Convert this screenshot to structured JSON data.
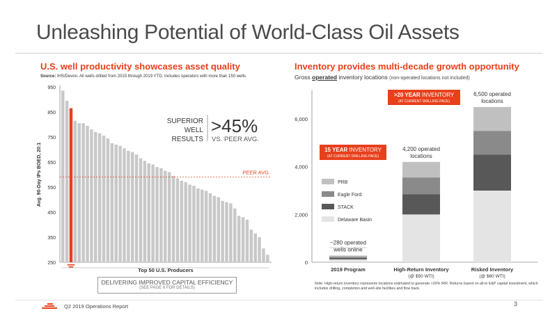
{
  "title": "Unleashing Potential of World-Class Oil Assets",
  "left_panel": {
    "title": "U.S. well productivity showcases asset quality",
    "source_label": "Source:",
    "source_text": "IHS/Devon. All wells drilled from 2015 through 2019 YTD. Includes operators with more than 150 wells.",
    "callout_words": [
      "SUPERIOR",
      "WELL",
      "RESULTS"
    ],
    "callout_value": ">45%",
    "callout_compare": "VS. PEER AVG.",
    "peer_avg_label": "PEER AVG.",
    "box_line1": "DELIVERING IMPROVED CAPITAL EFFICIENCY",
    "box_line2": "(SEE PAGE 6 FOR DETAILS)"
  },
  "right_panel": {
    "title": "Inventory provides multi-decade growth opportunity",
    "subtitle_pre": "Gross",
    "subtitle_op": "operated",
    "subtitle_mid": "inventory locations",
    "subtitle_rest": "(non-operated locations not included)",
    "note": "Note: High-return inventory represents locations estimated to generate >20% IRR. Returns based on all-in E&P capital investment, which includes drilling, completion and well-site facilities and flow back."
  },
  "chart_data": [
    {
      "type": "bar",
      "ylabel": "Avg. 90-Day IPs BOED, 20:1",
      "xlabel": "Top 50 U.S. Producers",
      "ylim": [
        250,
        950
      ],
      "yticks": [
        250,
        350,
        450,
        550,
        650,
        750,
        850,
        950
      ],
      "peer_avg": 590,
      "highlight_index": 2,
      "colors": {
        "bar": "#c8c8c8",
        "highlight": "#e8401c",
        "peer_line": "#e8401c"
      },
      "values": [
        935,
        895,
        865,
        815,
        805,
        805,
        795,
        780,
        770,
        765,
        755,
        745,
        725,
        720,
        715,
        705,
        695,
        690,
        680,
        665,
        655,
        645,
        640,
        630,
        625,
        615,
        610,
        595,
        585,
        575,
        570,
        560,
        555,
        545,
        540,
        535,
        525,
        515,
        510,
        495,
        490,
        485,
        465,
        435,
        430,
        420,
        380,
        365,
        350,
        305,
        280
      ]
    },
    {
      "type": "bar",
      "stacked": true,
      "ylim": [
        0,
        6800
      ],
      "yticks": [
        0,
        2000,
        4000,
        6000
      ],
      "ytick_labels": [
        "0",
        "2,000",
        "4,000",
        "6,000"
      ],
      "categories": [
        "2019 Program",
        "High-Return Inventory",
        "Risked Inventory"
      ],
      "category_sublabels": [
        "",
        "(@ $50 WTI)",
        "(@ $60 WTI)"
      ],
      "series": [
        {
          "name": "Delaware Basin",
          "color": "#e4e4e4",
          "values": [
            120,
            2000,
            3000
          ]
        },
        {
          "name": "STACK",
          "color": "#585858",
          "values": [
            60,
            850,
            1500
          ]
        },
        {
          "name": "Eagle Ford",
          "color": "#8a8a8a",
          "values": [
            50,
            700,
            1000
          ]
        },
        {
          "name": "PRB",
          "color": "#c0c0c0",
          "values": [
            50,
            650,
            1000
          ]
        }
      ],
      "bar_labels": [
        [
          "~280 operated",
          "wells online"
        ],
        [
          "4,200 operated",
          "locations"
        ],
        [
          "6,500 operated",
          "locations"
        ]
      ],
      "inventory_tags": [
        {
          "bold": "15 YEAR",
          "text": " INVENTORY",
          "sub": "(AT CURRENT DRILLING PACE)"
        },
        {
          "bold": ">20 YEAR",
          "text": " INVENTORY",
          "sub": "(AT CURRENT DRILLING PACE)"
        }
      ]
    }
  ],
  "footer": {
    "report": "Q2 2019 Operations Report",
    "page": "3"
  }
}
